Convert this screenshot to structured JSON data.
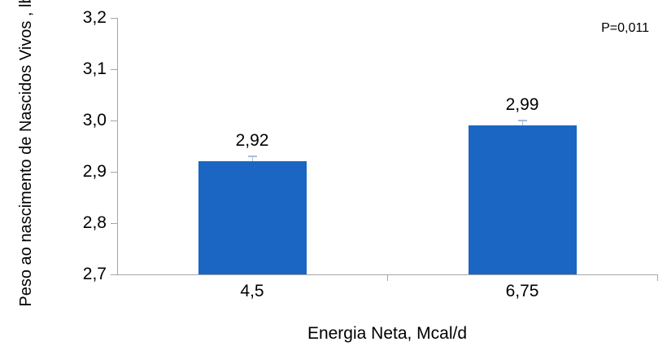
{
  "chart_data": {
    "type": "bar",
    "title": "",
    "categories": [
      "4,5",
      "6,75"
    ],
    "values": [
      2.92,
      2.99
    ],
    "value_labels": [
      "2,92",
      "2,99"
    ],
    "errors": [
      0.011,
      0.011
    ],
    "xlabel": "Energia Neta, Mcal/d",
    "ylabel": "Peso ao nascimento de Nascidos Vivos , lb",
    "ylim": [
      2.7,
      3.2
    ],
    "yticks": [
      2.7,
      2.8,
      2.9,
      3.0,
      3.1,
      3.2
    ],
    "ytick_labels": [
      "2,7",
      "2,8",
      "2,9",
      "3,0",
      "3,1",
      "3,2"
    ],
    "annotation": "P=0,011",
    "legend": "none",
    "grid": false,
    "colors": {
      "bar": "#1b66c2",
      "axis": "#a6a6a6",
      "error_bar": "#a7bddb",
      "text": "#000000",
      "background": "#ffffff"
    }
  }
}
